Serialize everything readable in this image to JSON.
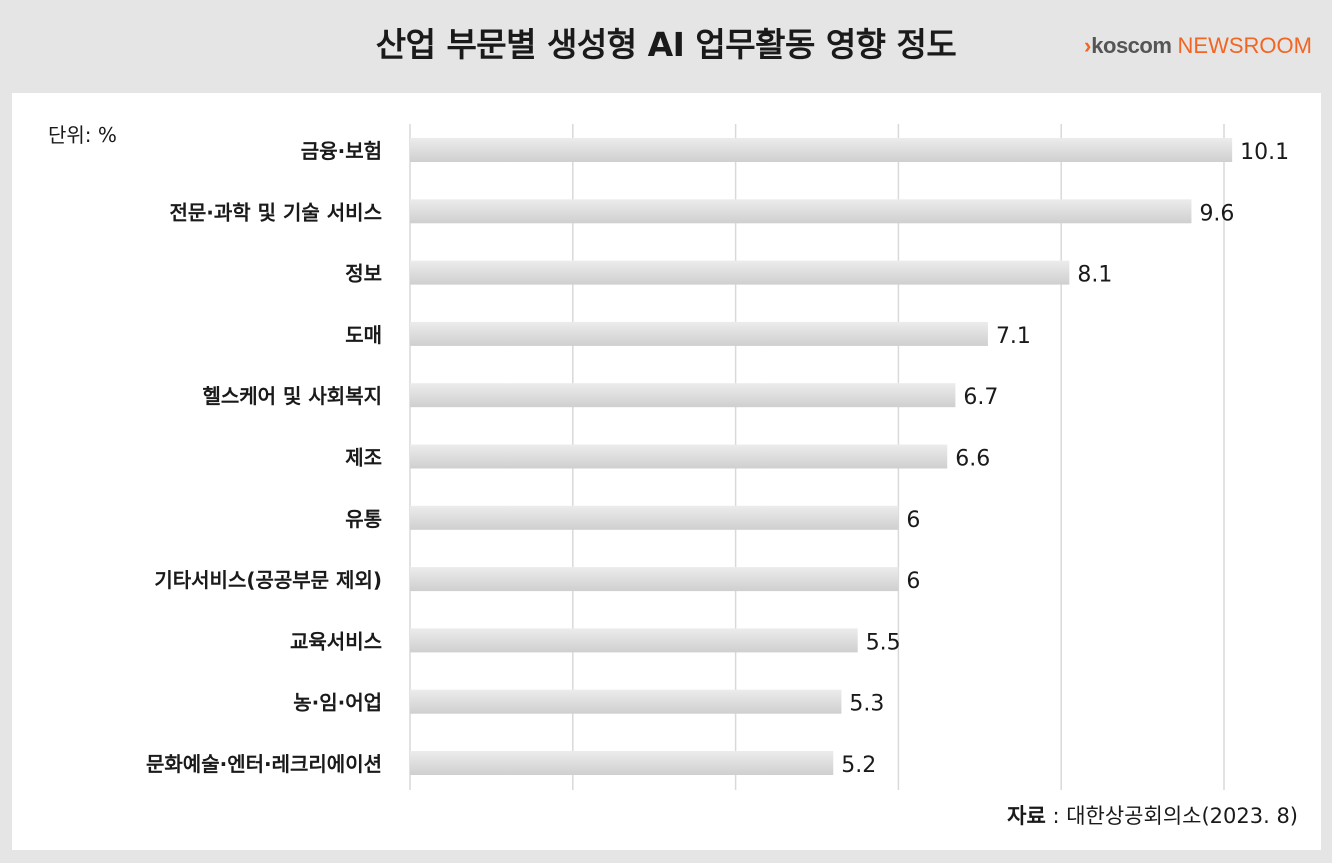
{
  "title": "산업 부문별 생성형 AI 업무활동 영향 정도",
  "logo": {
    "chevron": "›",
    "brand": "koscom",
    "sub": "NEWSROOM"
  },
  "unit_label": "단위: %",
  "source": {
    "label": "자료",
    "separator": " : ",
    "text": "대한상공회의소(2023. 8)"
  },
  "colors": {
    "bar_top": "#ececec",
    "bar_bottom": "#cfcfcf",
    "grid": "#d9d9d9",
    "accent": "#f26522"
  },
  "chart_data": {
    "type": "bar",
    "orientation": "horizontal",
    "categories": [
      "금융·보험",
      "전문·과학 및 기술 서비스",
      "정보",
      "도매",
      "헬스케어 및 사회복지",
      "제조",
      "유통",
      "기타서비스(공공부문 제외)",
      "교육서비스",
      "농·임·어업",
      "문화예술·엔터·레크리에이션"
    ],
    "values": [
      10.1,
      9.6,
      8.1,
      7.1,
      6.7,
      6.6,
      6,
      6,
      5.5,
      5.3,
      5.2
    ],
    "value_labels": [
      "10.1",
      "9.6",
      "8.1",
      "7.1",
      "6.7",
      "6.6",
      "6",
      "6",
      "5.5",
      "5.3",
      "5.2"
    ],
    "xlim": [
      0,
      10
    ],
    "grid": true,
    "legend": "none"
  }
}
